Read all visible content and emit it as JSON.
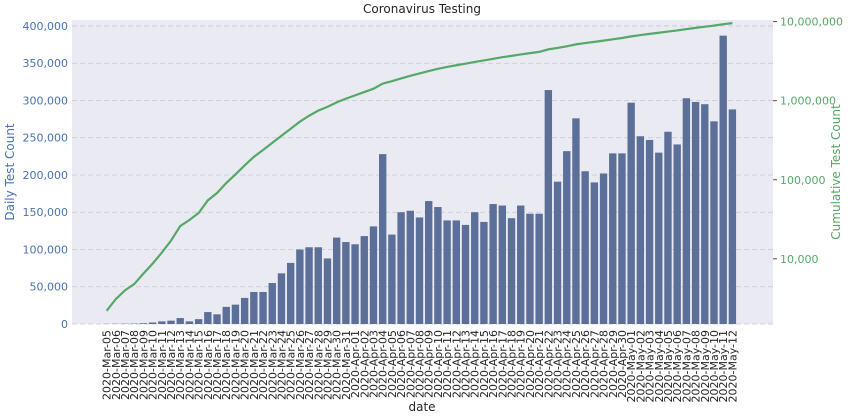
{
  "chart_data": {
    "type": "combo",
    "title": "Coronavirus Testing",
    "x_label": "date",
    "y_label": "Daily Test Count",
    "y2_label": "Cumulative Test Count",
    "categories": [
      "2020-Mar-05",
      "2020-Mar-06",
      "2020-Mar-07",
      "2020-Mar-08",
      "2020-Mar-09",
      "2020-Mar-10",
      "2020-Mar-11",
      "2020-Mar-12",
      "2020-Mar-13",
      "2020-Mar-14",
      "2020-Mar-15",
      "2020-Mar-16",
      "2020-Mar-17",
      "2020-Mar-18",
      "2020-Mar-19",
      "2020-Mar-20",
      "2020-Mar-21",
      "2020-Mar-22",
      "2020-Mar-23",
      "2020-Mar-24",
      "2020-Mar-25",
      "2020-Mar-26",
      "2020-Mar-27",
      "2020-Mar-28",
      "2020-Mar-29",
      "2020-Mar-30",
      "2020-Mar-31",
      "2020-Apr-01",
      "2020-Apr-02",
      "2020-Apr-03",
      "2020-Apr-04",
      "2020-Apr-05",
      "2020-Apr-06",
      "2020-Apr-07",
      "2020-Apr-08",
      "2020-Apr-09",
      "2020-Apr-10",
      "2020-Apr-11",
      "2020-Apr-12",
      "2020-Apr-13",
      "2020-Apr-14",
      "2020-Apr-15",
      "2020-Apr-16",
      "2020-Apr-17",
      "2020-Apr-18",
      "2020-Apr-19",
      "2020-Apr-20",
      "2020-Apr-21",
      "2020-Apr-22",
      "2020-Apr-23",
      "2020-Apr-24",
      "2020-Apr-25",
      "2020-Apr-26",
      "2020-Apr-27",
      "2020-Apr-28",
      "2020-Apr-29",
      "2020-Apr-30",
      "2020-May-01",
      "2020-May-02",
      "2020-May-03",
      "2020-May-04",
      "2020-May-05",
      "2020-May-06",
      "2020-May-07",
      "2020-May-08",
      "2020-May-09",
      "2020-May-10",
      "2020-May-11",
      "2020-May-12"
    ],
    "series": [
      {
        "type": "bar",
        "color": "#5b6f99",
        "values": [
          200,
          300,
          400,
          500,
          1000,
          2000,
          3500,
          4500,
          8000,
          3500,
          6500,
          16000,
          13000,
          23000,
          26000,
          35000,
          43000,
          43000,
          55000,
          68000,
          82000,
          100000,
          103000,
          103000,
          88000,
          116000,
          110000,
          107000,
          118000,
          131000,
          228000,
          120000,
          150000,
          152000,
          143000,
          165000,
          157000,
          139000,
          139000,
          133000,
          150000,
          137000,
          161000,
          159000,
          142000,
          159000,
          148000,
          148000,
          314000,
          191000,
          232000,
          276000,
          205000,
          190000,
          202000,
          229000,
          229000,
          297000,
          252000,
          247000,
          230000,
          258000,
          241000,
          303000,
          298000,
          295000,
          272000,
          387000,
          288000
        ]
      },
      {
        "type": "line",
        "axis": "y2",
        "color": "#55a868",
        "values": [
          2200,
          3100,
          4000,
          4800,
          6500,
          8700,
          12000,
          17000,
          26000,
          31000,
          38000,
          55000,
          68000,
          91000,
          117000,
          152000,
          195000,
          238000,
          293000,
          361000,
          443000,
          543000,
          646000,
          749000,
          837000,
          953000,
          1063000,
          1170000,
          1288000,
          1419000,
          1647000,
          1767000,
          1917000,
          2069000,
          2212000,
          2377000,
          2534000,
          2673000,
          2812000,
          2945000,
          3095000,
          3232000,
          3393000,
          3552000,
          3694000,
          3853000,
          4001000,
          4149000,
          4463000,
          4654000,
          4886000,
          5162000,
          5367000,
          5557000,
          5759000,
          5988000,
          6217000,
          6514000,
          6766000,
          7013000,
          7243000,
          7501000,
          7742000,
          8045000,
          8343000,
          8638000,
          8910000,
          9297000,
          9585000
        ]
      }
    ],
    "ylim": [
      0,
      408000
    ],
    "yticks": [
      0,
      {
        "value": 50000,
        "label": "50,000"
      },
      {
        "value": 100000,
        "label": "100,000"
      },
      {
        "value": 150000,
        "label": "150,000"
      },
      {
        "value": 200000,
        "label": "200,000"
      },
      {
        "value": 250000,
        "label": "250,000"
      },
      {
        "value": 300000,
        "label": "300,000"
      },
      {
        "value": 350000,
        "label": "350,000"
      },
      {
        "value": 400000,
        "label": "400,000"
      }
    ],
    "y2lim": [
      1500,
      10500000
    ],
    "y2_log": true,
    "y2ticks": [
      {
        "value": 10000,
        "label": "10,000"
      },
      {
        "value": 100000,
        "label": "100,000"
      },
      {
        "value": 1000000,
        "label": "1,000,000"
      },
      {
        "value": 10000000,
        "label": "10,000,000"
      }
    ],
    "grid": true
  }
}
